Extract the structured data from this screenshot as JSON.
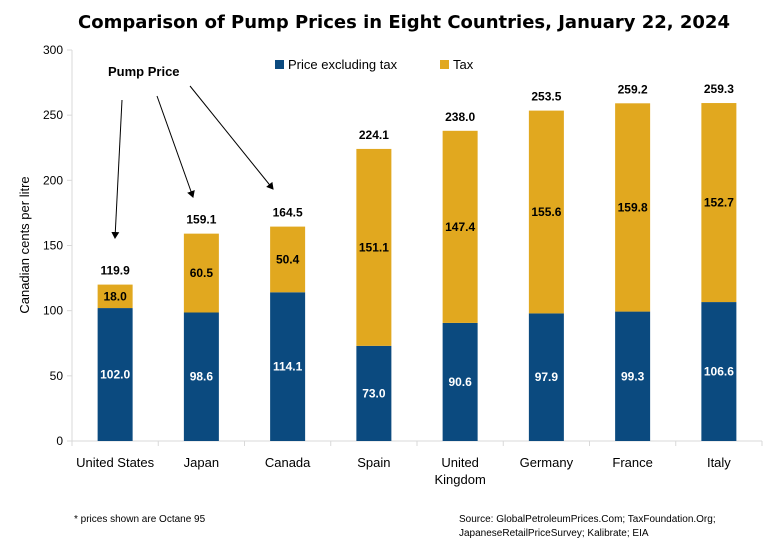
{
  "colors": {
    "excl": "#0b4a7f",
    "tax": "#e1a81f",
    "axis": "#d9d9d9"
  },
  "chart_data": {
    "type": "bar",
    "stacked": true,
    "title": "Comparison of Pump Prices in Eight Countries, January 22, 2024",
    "ylabel": "Canadian cents per litre",
    "xlabel": "",
    "ylim": [
      0,
      300
    ],
    "yticks": [
      "0",
      "50",
      "100",
      "150",
      "200",
      "250",
      "300"
    ],
    "categories": [
      [
        "United States"
      ],
      [
        "Japan"
      ],
      [
        "Canada"
      ],
      [
        "Spain"
      ],
      [
        "United",
        "Kingdom"
      ],
      [
        "Germany"
      ],
      [
        "France"
      ],
      [
        "Italy"
      ]
    ],
    "series": [
      {
        "name": "Price excluding tax",
        "values": [
          102.0,
          98.6,
          114.1,
          73.0,
          90.6,
          97.9,
          99.3,
          106.6
        ],
        "labels": [
          "102.0",
          "98.6",
          "114.1",
          "73.0",
          "90.6",
          "97.9",
          "99.3",
          "106.6"
        ]
      },
      {
        "name": "Tax",
        "values": [
          18.0,
          60.5,
          50.4,
          151.1,
          147.4,
          155.6,
          159.8,
          152.7
        ],
        "labels": [
          "18.0",
          "60.5",
          "50.4",
          "151.1",
          "147.4",
          "155.6",
          "159.8",
          "152.7"
        ]
      }
    ],
    "totals": [
      "119.9",
      "159.1",
      "164.5",
      "224.1",
      "238.0",
      "253.5",
      "259.2",
      "259.3"
    ],
    "legend_position": "top-center",
    "grid": false,
    "annotation": {
      "text": "Pump Price",
      "points_to": [
        "United States",
        "Japan",
        "Canada"
      ]
    }
  },
  "footnotes": {
    "left": "* prices shown are Octane 95",
    "right_line1": "Source: GlobalPetroleumPrices.Com; TaxFoundation.Org;",
    "right_line2": "JapaneseRetailPriceSurvey; Kalibrate; EIA"
  }
}
